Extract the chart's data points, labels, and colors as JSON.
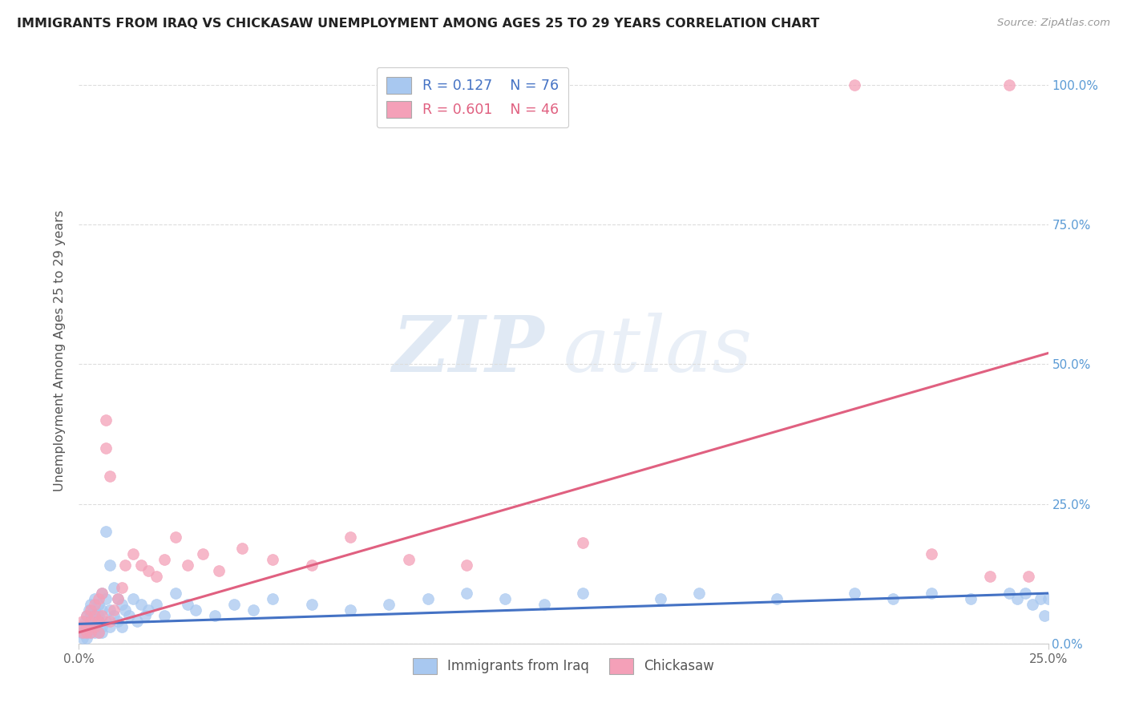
{
  "title": "IMMIGRANTS FROM IRAQ VS CHICKASAW UNEMPLOYMENT AMONG AGES 25 TO 29 YEARS CORRELATION CHART",
  "source": "Source: ZipAtlas.com",
  "ylabel_label": "Unemployment Among Ages 25 to 29 years",
  "legend_blue_r": "0.127",
  "legend_blue_n": "76",
  "legend_pink_r": "0.601",
  "legend_pink_n": "46",
  "legend_blue_label": "Immigrants from Iraq",
  "legend_pink_label": "Chickasaw",
  "watermark_zip": "ZIP",
  "watermark_atlas": "atlas",
  "blue_color": "#A8C8F0",
  "pink_color": "#F4A0B8",
  "blue_line_color": "#4472C4",
  "pink_line_color": "#E06080",
  "title_color": "#222222",
  "right_axis_color": "#5B9BD5",
  "xlim": [
    0.0,
    0.25
  ],
  "ylim": [
    0.0,
    1.05
  ],
  "yticks": [
    0.0,
    0.25,
    0.5,
    0.75,
    1.0
  ],
  "ytick_labels": [
    "0.0%",
    "25.0%",
    "50.0%",
    "75.0%",
    "100.0%"
  ],
  "xticks": [
    0.0,
    0.25
  ],
  "xtick_labels": [
    "0.0%",
    "25.0%"
  ],
  "blue_scatter_x": [
    0.0005,
    0.001,
    0.001,
    0.0015,
    0.002,
    0.002,
    0.002,
    0.0025,
    0.003,
    0.003,
    0.003,
    0.003,
    0.003,
    0.004,
    0.004,
    0.004,
    0.004,
    0.004,
    0.005,
    0.005,
    0.005,
    0.005,
    0.006,
    0.006,
    0.006,
    0.006,
    0.007,
    0.007,
    0.007,
    0.008,
    0.008,
    0.008,
    0.009,
    0.009,
    0.01,
    0.01,
    0.011,
    0.011,
    0.012,
    0.013,
    0.014,
    0.015,
    0.016,
    0.017,
    0.018,
    0.02,
    0.022,
    0.025,
    0.028,
    0.03,
    0.035,
    0.04,
    0.045,
    0.05,
    0.06,
    0.07,
    0.08,
    0.09,
    0.1,
    0.11,
    0.12,
    0.13,
    0.15,
    0.16,
    0.18,
    0.2,
    0.21,
    0.22,
    0.23,
    0.24,
    0.242,
    0.244,
    0.246,
    0.248,
    0.249,
    0.25
  ],
  "blue_scatter_y": [
    0.02,
    0.03,
    0.01,
    0.04,
    0.02,
    0.05,
    0.01,
    0.06,
    0.03,
    0.05,
    0.07,
    0.02,
    0.04,
    0.08,
    0.03,
    0.06,
    0.02,
    0.05,
    0.04,
    0.07,
    0.02,
    0.05,
    0.09,
    0.03,
    0.06,
    0.02,
    0.2,
    0.08,
    0.04,
    0.14,
    0.06,
    0.03,
    0.1,
    0.05,
    0.08,
    0.04,
    0.07,
    0.03,
    0.06,
    0.05,
    0.08,
    0.04,
    0.07,
    0.05,
    0.06,
    0.07,
    0.05,
    0.09,
    0.07,
    0.06,
    0.05,
    0.07,
    0.06,
    0.08,
    0.07,
    0.06,
    0.07,
    0.08,
    0.09,
    0.08,
    0.07,
    0.09,
    0.08,
    0.09,
    0.08,
    0.09,
    0.08,
    0.09,
    0.08,
    0.09,
    0.08,
    0.09,
    0.07,
    0.08,
    0.05,
    0.08
  ],
  "pink_scatter_x": [
    0.0005,
    0.001,
    0.001,
    0.002,
    0.002,
    0.002,
    0.003,
    0.003,
    0.003,
    0.004,
    0.004,
    0.004,
    0.005,
    0.005,
    0.005,
    0.006,
    0.006,
    0.007,
    0.007,
    0.008,
    0.008,
    0.009,
    0.01,
    0.011,
    0.012,
    0.014,
    0.016,
    0.018,
    0.02,
    0.022,
    0.025,
    0.028,
    0.032,
    0.036,
    0.042,
    0.05,
    0.06,
    0.07,
    0.085,
    0.1,
    0.13,
    0.2,
    0.22,
    0.235,
    0.24,
    0.245
  ],
  "pink_scatter_y": [
    0.03,
    0.04,
    0.02,
    0.05,
    0.03,
    0.02,
    0.06,
    0.04,
    0.02,
    0.07,
    0.05,
    0.03,
    0.08,
    0.04,
    0.02,
    0.09,
    0.05,
    0.4,
    0.35,
    0.3,
    0.04,
    0.06,
    0.08,
    0.1,
    0.14,
    0.16,
    0.14,
    0.13,
    0.12,
    0.15,
    0.19,
    0.14,
    0.16,
    0.13,
    0.17,
    0.15,
    0.14,
    0.19,
    0.15,
    0.14,
    0.18,
    1.0,
    0.16,
    0.12,
    1.0,
    0.12
  ],
  "blue_trend_x": [
    0.0,
    0.25
  ],
  "blue_trend_y": [
    0.035,
    0.09
  ],
  "pink_trend_x": [
    0.0,
    0.25
  ],
  "pink_trend_y": [
    0.02,
    0.52
  ],
  "grid_color": "#DDDDDD",
  "background_color": "#FFFFFF"
}
